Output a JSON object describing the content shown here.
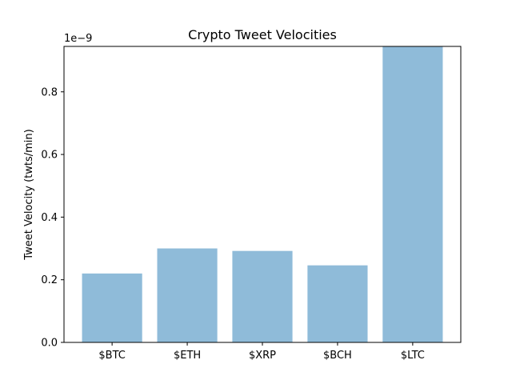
{
  "chart_data": {
    "type": "bar",
    "title": "Crypto Tweet Velocities",
    "ylabel": "Tweet Velocity (twts/min)",
    "xlabel": "",
    "y_offset_text": "1e−9",
    "categories": [
      "$BTC",
      "$ETH",
      "$XRP",
      "$BCH",
      "$LTC"
    ],
    "values": [
      0.22,
      0.3,
      0.292,
      0.246,
      0.945
    ],
    "value_scale": "1e-9",
    "ylim": [
      0,
      0.945
    ],
    "yticks": [
      0.0,
      0.2,
      0.4,
      0.6,
      0.8
    ],
    "ytick_labels": [
      "0.0",
      "0.2",
      "0.4",
      "0.6",
      "0.8"
    ],
    "bar_color": "#8fbbd9",
    "grid": false,
    "legend": "none"
  }
}
